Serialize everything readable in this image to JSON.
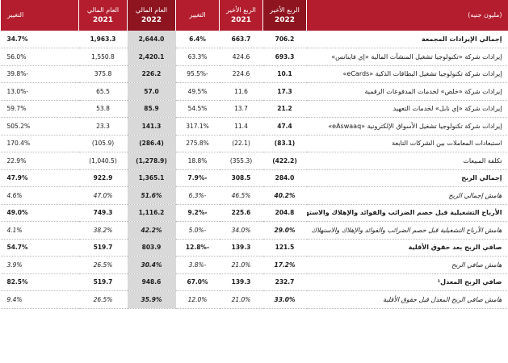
{
  "header": {
    "label": "(مليون جنيه)",
    "q4_2022_a": "الربع الأخير",
    "q4_2022_b": "2022",
    "q4_2021_a": "الربع الأخير",
    "q4_2021_b": "2021",
    "q_change": "التغيير",
    "fy_2022_a": "العام المالي",
    "fy_2022_b": "2022",
    "fy_2021_a": "العام المالي",
    "fy_2021_b": "2021",
    "fy_change": "التغيير"
  },
  "rows": [
    {
      "label": "إجمالي الإيرادات المجمعة",
      "q22": "706.2",
      "q21": "663.7",
      "qc": "6.4%",
      "y22": "2,644.0",
      "y21": "1,963.3",
      "yc": "34.7%"
    },
    {
      "label": "إيرادات شركة «تكنولوجيا تشغيل المنشآت المالية «إي فاينانس»",
      "q22": "693.3",
      "q21": "424.6",
      "qc": "63.3%",
      "y22": "2,420.1",
      "y21": "1,550.8",
      "yc": "56.0%"
    },
    {
      "label": "إيرادات شركة تكنولوجيا تشغيل البطاقات الذكية «eCards»",
      "q22": "10.1",
      "q21": "224.6",
      "qc": "-95.5%",
      "y22": "226.2",
      "y21": "375.8",
      "yc": "-39.8%"
    },
    {
      "label": "إيرادات شركة «خلص» لخدمات المدفوعات الرقمية",
      "q22": "17.3",
      "q21": "11.6",
      "qc": "49.5%",
      "y22": "57.0",
      "y21": "65.5",
      "yc": "-13.0%"
    },
    {
      "label": "إيرادات شركة «إي نابل» لخدمات التعهيد",
      "q22": "21.2",
      "q21": "13.7",
      "qc": "54.5%",
      "y22": "85.9",
      "y21": "53.8",
      "yc": "59.7%"
    },
    {
      "label": "إيرادات شركة تكنولوجيا تشغيل الأسواق الإلكترونية «eAswaaq»",
      "q22": "47.4",
      "q21": "11.4",
      "qc": "317.1%",
      "y22": "141.3",
      "y21": "23.3",
      "yc": "505.2%"
    },
    {
      "label": "استبعادات المعاملات بين الشركات التابعة",
      "q22": "(83.1)",
      "q21": "(22.1)",
      "qc": "275.8%",
      "y22": "(286.4)",
      "y21": "(105.9)",
      "yc": "170.4%"
    },
    {
      "label": "تكلفة المبيعات",
      "q22": "(422.2)",
      "q21": "(355.3)",
      "qc": "18.8%",
      "y22": "(1,278.9)",
      "y21": "(1,040.5)",
      "yc": "22.9%"
    },
    {
      "label": "إجمالي الربح",
      "q22": "284.0",
      "q21": "308.5",
      "qc": "-7.9%",
      "y22": "1,365.1",
      "y21": "922.9",
      "yc": "47.9%"
    },
    {
      "label": "هامش إجمالي الربح",
      "q22": "40.2%",
      "q21": "46.5%",
      "qc": "-6.3%",
      "y22": "51.6%",
      "y21": "47.0%",
      "yc": "4.6%"
    },
    {
      "label": "الأرباح التشغيلية قبل خصم الضرائب والفوائد والإهلاك والاستهلاك",
      "q22": "204.8",
      "q21": "225.6",
      "qc": "-9.2%",
      "y22": "1,116.2",
      "y21": "749.3",
      "yc": "49.0%"
    },
    {
      "label": "هامش الأرباح التشغيلية قبل خصم الضرائب والفوائد والإهلاك والاستهلاك",
      "q22": "29.0%",
      "q21": "34.0%",
      "qc": "-5.0%",
      "y22": "42.2%",
      "y21": "38.2%",
      "yc": "4.1%"
    },
    {
      "label": "صافي الربح بعد حقوق الأقلية",
      "q22": "121.5",
      "q21": "139.3",
      "qc": "-12.8%",
      "y22": "803.9",
      "y21": "519.7",
      "yc": "54.7%"
    },
    {
      "label": "هامش صافي الربح",
      "q22": "17.2%",
      "q21": "21.0%",
      "qc": "-3.8%",
      "y22": "30.4%",
      "y21": "26.5%",
      "yc": "3.9%"
    },
    {
      "label": "صافي الربح المعدل¹",
      "q22": "232.7",
      "q21": "139.3",
      "qc": "67.0%",
      "y22": "948.6",
      "y21": "519.7",
      "yc": "82.5%"
    },
    {
      "label": "هامش صافي الربح المعدل قبل حقوق الأقلية",
      "q22": "33.0%",
      "q21": "21.0%",
      "qc": "12.0%",
      "y22": "35.9%",
      "y21": "26.5%",
      "yc": "9.4%"
    }
  ]
}
